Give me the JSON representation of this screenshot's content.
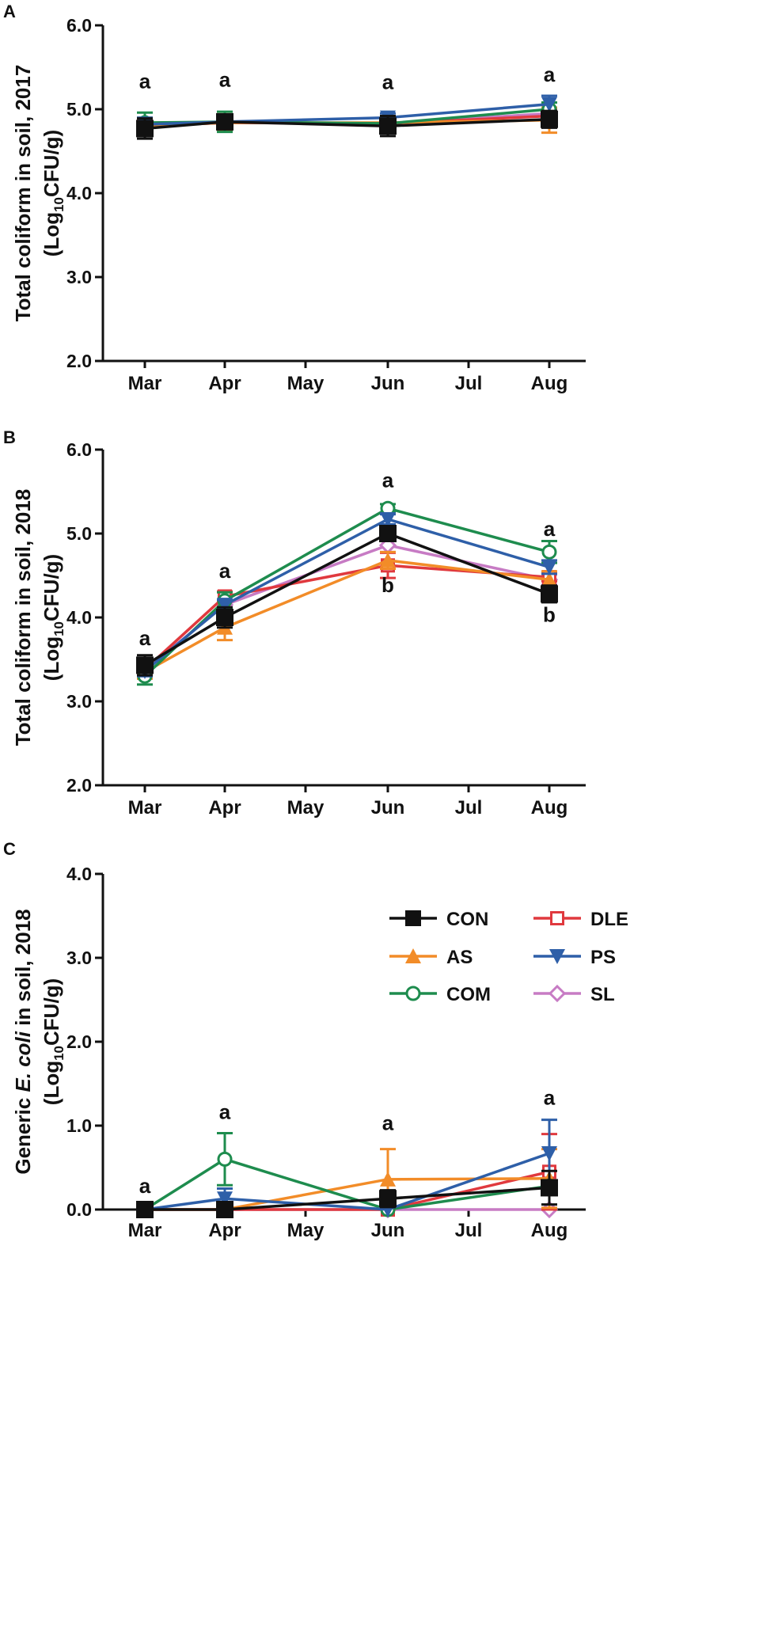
{
  "colors": {
    "CON": "#111111",
    "AS": "#F28C28",
    "COM": "#1E8C4E",
    "DLE": "#E0393E",
    "PS": "#2E5FA8",
    "SL": "#C77BC4"
  },
  "chart_data": [
    {
      "panel": "A",
      "type": "line",
      "ylabel_line1": "Total coliform in soil, 2017",
      "ylabel_line2_pre": "(Log",
      "ylabel_line2_sub": "10",
      "ylabel_line2_post": "CFU/g)",
      "x_categories": [
        "Mar",
        "Apr",
        "May",
        "Jun",
        "Jul",
        "Aug"
      ],
      "y_ticks": [
        "2.0",
        "3.0",
        "4.0",
        "5.0",
        "6.0"
      ],
      "ylim": [
        2.0,
        6.0
      ],
      "series": [
        {
          "name": "CON",
          "points": [
            {
              "x": 0,
              "y": 4.77,
              "err": 0.12
            },
            {
              "x": 1,
              "y": 4.85,
              "err": 0.08
            },
            {
              "x": 3,
              "y": 4.8,
              "err": 0.12
            },
            {
              "x": 5,
              "y": 4.88,
              "err": 0.1
            }
          ]
        },
        {
          "name": "AS",
          "points": [
            {
              "x": 0,
              "y": 4.8,
              "err": 0.1
            },
            {
              "x": 1,
              "y": 4.84,
              "err": 0.1
            },
            {
              "x": 3,
              "y": 4.84,
              "err": 0.05
            },
            {
              "x": 5,
              "y": 4.87,
              "err": 0.15
            }
          ]
        },
        {
          "name": "COM",
          "points": [
            {
              "x": 0,
              "y": 4.84,
              "err": 0.12
            },
            {
              "x": 1,
              "y": 4.85,
              "err": 0.12
            },
            {
              "x": 3,
              "y": 4.83,
              "err": 0.05
            },
            {
              "x": 5,
              "y": 5.0,
              "err": 0.08
            }
          ]
        },
        {
          "name": "DLE",
          "points": [
            {
              "x": 0,
              "y": 4.8,
              "err": 0.08
            },
            {
              "x": 1,
              "y": 4.84,
              "err": 0.06
            },
            {
              "x": 3,
              "y": 4.83,
              "err": 0.05
            },
            {
              "x": 5,
              "y": 4.92,
              "err": 0.08
            }
          ]
        },
        {
          "name": "PS",
          "points": [
            {
              "x": 0,
              "y": 4.82,
              "err": 0.08
            },
            {
              "x": 1,
              "y": 4.85,
              "err": 0.05
            },
            {
              "x": 3,
              "y": 4.9,
              "err": 0.05
            },
            {
              "x": 5,
              "y": 5.06,
              "err": 0.1
            }
          ]
        },
        {
          "name": "SL",
          "points": [
            {
              "x": 0,
              "y": 4.8,
              "err": 0.06
            },
            {
              "x": 1,
              "y": 4.84,
              "err": 0.05
            },
            {
              "x": 3,
              "y": 4.83,
              "err": 0.05
            },
            {
              "x": 5,
              "y": 4.95,
              "err": 0.06
            }
          ]
        }
      ],
      "annotations": [
        {
          "x": 0,
          "y": 5.25,
          "text": "a"
        },
        {
          "x": 1,
          "y": 5.27,
          "text": "a"
        },
        {
          "x": 3,
          "y": 5.24,
          "text": "a"
        },
        {
          "x": 5,
          "y": 5.33,
          "text": "a"
        }
      ]
    },
    {
      "panel": "B",
      "type": "line",
      "ylabel_line1": "Total coliform in soil, 2018",
      "ylabel_line2_pre": "(Log",
      "ylabel_line2_sub": "10",
      "ylabel_line2_post": "CFU/g)",
      "x_categories": [
        "Mar",
        "Apr",
        "May",
        "Jun",
        "Jul",
        "Aug"
      ],
      "y_ticks": [
        "2.0",
        "3.0",
        "4.0",
        "5.0",
        "6.0"
      ],
      "ylim": [
        2.0,
        6.0
      ],
      "series": [
        {
          "name": "CON",
          "points": [
            {
              "x": 0,
              "y": 3.43,
              "err": 0.12
            },
            {
              "x": 1,
              "y": 4.0,
              "err": 0.12
            },
            {
              "x": 3,
              "y": 5.0,
              "err": 0.08
            },
            {
              "x": 5,
              "y": 4.28,
              "err": 0.1
            }
          ]
        },
        {
          "name": "AS",
          "points": [
            {
              "x": 0,
              "y": 3.35,
              "err": 0.08
            },
            {
              "x": 1,
              "y": 3.88,
              "err": 0.15
            },
            {
              "x": 3,
              "y": 4.68,
              "err": 0.1
            },
            {
              "x": 5,
              "y": 4.45,
              "err": 0.1
            }
          ]
        },
        {
          "name": "COM",
          "points": [
            {
              "x": 0,
              "y": 3.3,
              "err": 0.1
            },
            {
              "x": 1,
              "y": 4.2,
              "err": 0.1
            },
            {
              "x": 3,
              "y": 5.3,
              "err": 0.05
            },
            {
              "x": 5,
              "y": 4.78,
              "err": 0.13
            }
          ]
        },
        {
          "name": "DLE",
          "points": [
            {
              "x": 0,
              "y": 3.38,
              "err": 0.06
            },
            {
              "x": 1,
              "y": 4.25,
              "err": 0.06
            },
            {
              "x": 3,
              "y": 4.62,
              "err": 0.15
            },
            {
              "x": 5,
              "y": 4.48,
              "err": 0.05
            }
          ]
        },
        {
          "name": "PS",
          "points": [
            {
              "x": 0,
              "y": 3.36,
              "err": 0.06
            },
            {
              "x": 1,
              "y": 4.15,
              "err": 0.06
            },
            {
              "x": 3,
              "y": 5.17,
              "err": 0.06
            },
            {
              "x": 5,
              "y": 4.6,
              "err": 0.08
            }
          ]
        },
        {
          "name": "SL",
          "points": [
            {
              "x": 0,
              "y": 3.37,
              "err": 0.05
            },
            {
              "x": 1,
              "y": 4.15,
              "err": 0.05
            },
            {
              "x": 3,
              "y": 4.86,
              "err": 0.08
            },
            {
              "x": 5,
              "y": 4.45,
              "err": 0.06
            }
          ]
        }
      ],
      "annotations": [
        {
          "x": 0,
          "y": 3.67,
          "text": "a"
        },
        {
          "x": 1,
          "y": 4.47,
          "text": "a"
        },
        {
          "x": 3,
          "y": 5.55,
          "text": "a"
        },
        {
          "x": 3,
          "y": 4.3,
          "text": "b"
        },
        {
          "x": 5,
          "y": 4.97,
          "text": "a"
        },
        {
          "x": 5,
          "y": 3.95,
          "text": "b"
        }
      ]
    },
    {
      "panel": "C",
      "type": "line",
      "ylabel_line1_pre": "Generic ",
      "ylabel_line1_italic": "E. coli",
      "ylabel_line1_post": " in soil, 2018",
      "ylabel_line2_pre": "(Log",
      "ylabel_line2_sub": "10",
      "ylabel_line2_post": "CFU/g)",
      "x_categories": [
        "Mar",
        "Apr",
        "May",
        "Jun",
        "Jul",
        "Aug"
      ],
      "y_ticks": [
        "0.0",
        "1.0",
        "2.0",
        "3.0",
        "4.0"
      ],
      "ylim": [
        0.0,
        4.0
      ],
      "series": [
        {
          "name": "CON",
          "points": [
            {
              "x": 0,
              "y": 0.0,
              "err": 0
            },
            {
              "x": 1,
              "y": 0.0,
              "err": 0
            },
            {
              "x": 3,
              "y": 0.13,
              "err": 0.1
            },
            {
              "x": 5,
              "y": 0.26,
              "err": 0.2
            }
          ]
        },
        {
          "name": "AS",
          "points": [
            {
              "x": 0,
              "y": 0.0,
              "err": 0
            },
            {
              "x": 1,
              "y": 0.0,
              "err": 0
            },
            {
              "x": 3,
              "y": 0.36,
              "err": 0.36
            },
            {
              "x": 5,
              "y": 0.37,
              "err": 0.35
            }
          ]
        },
        {
          "name": "COM",
          "points": [
            {
              "x": 0,
              "y": 0.0,
              "err": 0
            },
            {
              "x": 1,
              "y": 0.6,
              "err": 0.31
            },
            {
              "x": 3,
              "y": 0.0,
              "err": 0
            },
            {
              "x": 5,
              "y": 0.28,
              "err": 0.05
            }
          ]
        },
        {
          "name": "DLE",
          "points": [
            {
              "x": 0,
              "y": 0.0,
              "err": 0
            },
            {
              "x": 1,
              "y": 0.0,
              "err": 0
            },
            {
              "x": 3,
              "y": 0.0,
              "err": 0
            },
            {
              "x": 5,
              "y": 0.45,
              "err": 0.45
            }
          ]
        },
        {
          "name": "PS",
          "points": [
            {
              "x": 0,
              "y": 0.0,
              "err": 0
            },
            {
              "x": 1,
              "y": 0.13,
              "err": 0.12
            },
            {
              "x": 3,
              "y": 0.0,
              "err": 0
            },
            {
              "x": 5,
              "y": 0.67,
              "err": 0.4
            }
          ]
        },
        {
          "name": "SL",
          "points": [
            {
              "x": 0,
              "y": 0.0,
              "err": 0
            },
            {
              "x": 1,
              "y": 0.0,
              "err": 0
            },
            {
              "x": 3,
              "y": 0.0,
              "err": 0
            },
            {
              "x": 5,
              "y": 0.0,
              "err": 0
            }
          ]
        }
      ],
      "annotations": [
        {
          "x": 0,
          "y": 0.2,
          "text": "a"
        },
        {
          "x": 1,
          "y": 1.08,
          "text": "a"
        },
        {
          "x": 3,
          "y": 0.95,
          "text": "a"
        },
        {
          "x": 5,
          "y": 1.25,
          "text": "a"
        }
      ],
      "legend": {
        "placement": "top-right",
        "entries": [
          {
            "name": "CON",
            "label": "CON",
            "marker": "square-filled"
          },
          {
            "name": "DLE",
            "label": "DLE",
            "marker": "square-open"
          },
          {
            "name": "AS",
            "label": "AS",
            "marker": "triangle-up"
          },
          {
            "name": "PS",
            "label": "PS",
            "marker": "triangle-down"
          },
          {
            "name": "COM",
            "label": "COM",
            "marker": "circle-open"
          },
          {
            "name": "SL",
            "label": "SL",
            "marker": "diamond"
          }
        ]
      }
    }
  ]
}
